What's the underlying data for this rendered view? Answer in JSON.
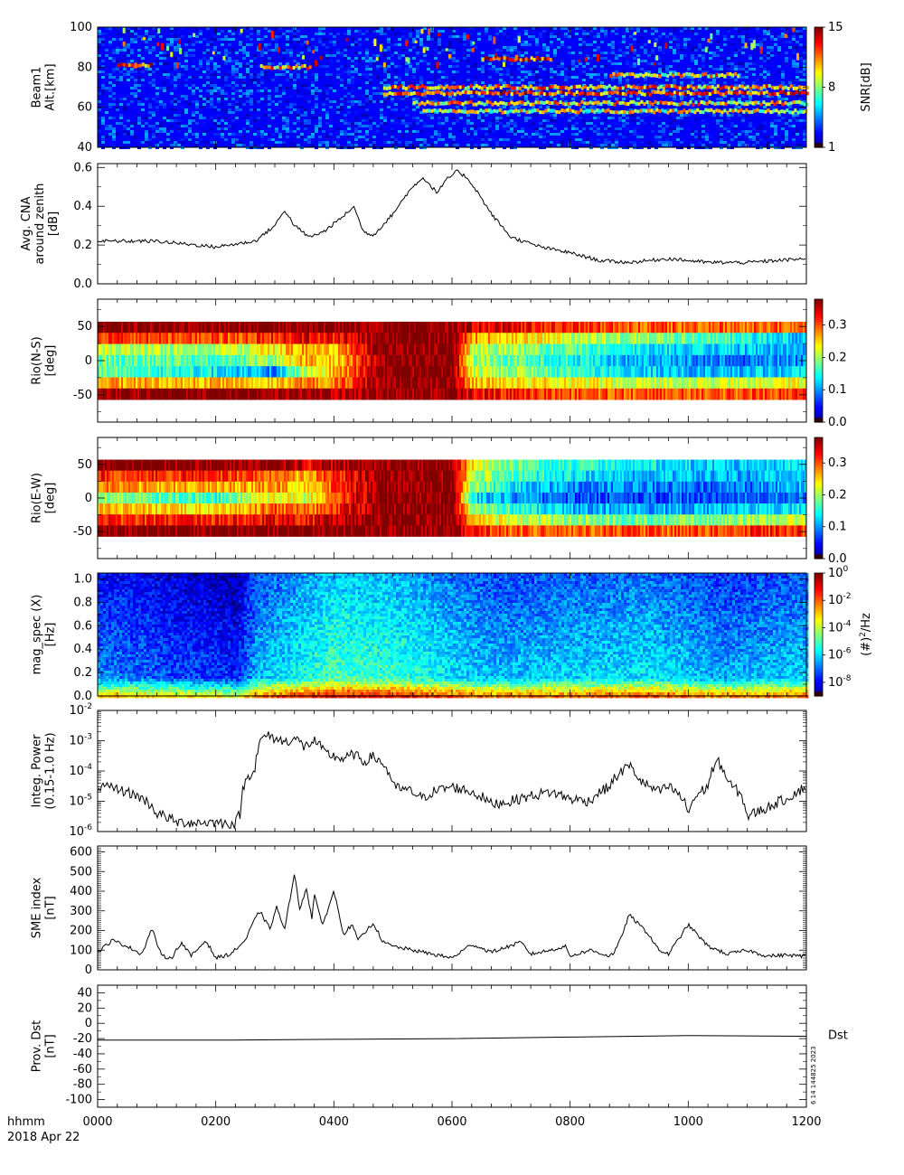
{
  "x_axis": {
    "labels": [
      "0000",
      "0200",
      "0400",
      "0600",
      "0800",
      "1000",
      "1200"
    ],
    "label_prefix": "hhmm",
    "date": "2018 Apr 22",
    "minutes": [
      0,
      120,
      240,
      360,
      480,
      600,
      720
    ]
  },
  "stamp": "6 14 144825 2023",
  "chart_data": [
    {
      "id": "beam1",
      "type": "heatmap",
      "ylabel": [
        "Beam1",
        "Alt.[km]"
      ],
      "ylim": [
        40,
        100
      ],
      "yticks": [
        40,
        60,
        80,
        100
      ],
      "colorbar": {
        "label": "SNR[dB]",
        "ticks": [
          "1",
          "8",
          "15"
        ],
        "range": [
          1,
          15
        ]
      },
      "layers": [
        {
          "altitude_km": 81,
          "start_min": 20,
          "end_min": 55,
          "snr_db": 12
        },
        {
          "altitude_km": 80,
          "start_min": 165,
          "end_min": 215,
          "snr_db": 11
        },
        {
          "altitude_km": 84,
          "start_min": 390,
          "end_min": 460,
          "snr_db": 13
        },
        {
          "altitude_km": 70,
          "start_min": 290,
          "end_min": 720,
          "snr_db": 11
        },
        {
          "altitude_km": 67,
          "start_min": 290,
          "end_min": 720,
          "snr_db": 12
        },
        {
          "altitude_km": 62,
          "start_min": 320,
          "end_min": 720,
          "snr_db": 10
        },
        {
          "altitude_km": 58,
          "start_min": 330,
          "end_min": 720,
          "snr_db": 9
        },
        {
          "altitude_km": 76,
          "start_min": 520,
          "end_min": 650,
          "snr_db": 10
        }
      ]
    },
    {
      "id": "cna",
      "type": "line",
      "ylabel": [
        "Avg. CNA",
        "around zenith",
        "[dB]"
      ],
      "ylim": [
        0.0,
        0.62
      ],
      "yticks": [
        "0.0",
        "0.2",
        "0.4",
        "0.6"
      ],
      "x": [
        0,
        60,
        120,
        160,
        180,
        190,
        200,
        215,
        230,
        250,
        260,
        270,
        280,
        300,
        315,
        330,
        345,
        355,
        365,
        375,
        385,
        400,
        420,
        450,
        480,
        510,
        540,
        580,
        620,
        660,
        690,
        720
      ],
      "values": [
        0.22,
        0.22,
        0.19,
        0.22,
        0.3,
        0.38,
        0.3,
        0.24,
        0.27,
        0.35,
        0.4,
        0.27,
        0.25,
        0.36,
        0.47,
        0.55,
        0.47,
        0.54,
        0.58,
        0.55,
        0.48,
        0.36,
        0.24,
        0.19,
        0.16,
        0.12,
        0.11,
        0.13,
        0.11,
        0.11,
        0.12,
        0.13
      ]
    },
    {
      "id": "rio_ns",
      "type": "heatmap",
      "ylabel": [
        "Rio(N-S)",
        "[deg]"
      ],
      "ylim": [
        -90,
        90
      ],
      "yticks": [
        "-50",
        "0",
        "50"
      ],
      "colorbar": {
        "ticks": [
          "0.0",
          "0.1",
          "0.2",
          "0.3"
        ],
        "range": [
          0,
          0.38
        ]
      },
      "beam_angles_deg": [
        50,
        30,
        15,
        0,
        -15,
        -30,
        -45
      ],
      "x": [
        0,
        120,
        180,
        210,
        240,
        290,
        340,
        360,
        380,
        420,
        480,
        540,
        600,
        660,
        720
      ],
      "values": [
        [
          0.38,
          0.38,
          0.38,
          0.38,
          0.38,
          0.38,
          0.38,
          0.38,
          0.35,
          0.34,
          0.32,
          0.3,
          0.3,
          0.3,
          0.3
        ],
        [
          0.32,
          0.3,
          0.32,
          0.34,
          0.33,
          0.38,
          0.38,
          0.38,
          0.28,
          0.25,
          0.22,
          0.2,
          0.18,
          0.15,
          0.12
        ],
        [
          0.22,
          0.2,
          0.24,
          0.28,
          0.26,
          0.38,
          0.38,
          0.38,
          0.22,
          0.2,
          0.17,
          0.15,
          0.13,
          0.12,
          0.12
        ],
        [
          0.18,
          0.17,
          0.2,
          0.27,
          0.25,
          0.38,
          0.38,
          0.38,
          0.2,
          0.18,
          0.15,
          0.12,
          0.1,
          0.09,
          0.1
        ],
        [
          0.18,
          0.14,
          0.1,
          0.22,
          0.26,
          0.38,
          0.38,
          0.38,
          0.22,
          0.2,
          0.16,
          0.14,
          0.12,
          0.12,
          0.13
        ],
        [
          0.28,
          0.26,
          0.25,
          0.28,
          0.28,
          0.38,
          0.38,
          0.38,
          0.26,
          0.25,
          0.24,
          0.22,
          0.22,
          0.22,
          0.24
        ],
        [
          0.38,
          0.38,
          0.38,
          0.37,
          0.36,
          0.38,
          0.38,
          0.38,
          0.34,
          0.32,
          0.3,
          0.3,
          0.3,
          0.3,
          0.32
        ]
      ]
    },
    {
      "id": "rio_ew",
      "type": "heatmap",
      "ylabel": [
        "Rio(E-W)",
        "[deg]"
      ],
      "ylim": [
        -90,
        90
      ],
      "yticks": [
        "-50",
        "0",
        "50"
      ],
      "colorbar": {
        "ticks": [
          "0.0",
          "0.1",
          "0.2",
          "0.3"
        ],
        "range": [
          0,
          0.38
        ]
      },
      "beam_angles_deg": [
        50,
        30,
        15,
        0,
        -15,
        -30,
        -45
      ],
      "x": [
        0,
        120,
        180,
        210,
        240,
        290,
        340,
        360,
        380,
        420,
        480,
        540,
        600,
        660,
        720
      ],
      "values": [
        [
          0.38,
          0.38,
          0.38,
          0.34,
          0.36,
          0.38,
          0.38,
          0.38,
          0.24,
          0.18,
          0.16,
          0.15,
          0.13,
          0.12,
          0.14
        ],
        [
          0.32,
          0.32,
          0.3,
          0.26,
          0.32,
          0.38,
          0.38,
          0.38,
          0.22,
          0.17,
          0.14,
          0.12,
          0.12,
          0.11,
          0.14
        ],
        [
          0.28,
          0.26,
          0.28,
          0.24,
          0.3,
          0.38,
          0.38,
          0.38,
          0.2,
          0.14,
          0.1,
          0.1,
          0.09,
          0.09,
          0.12
        ],
        [
          0.2,
          0.16,
          0.24,
          0.22,
          0.3,
          0.38,
          0.38,
          0.38,
          0.14,
          0.1,
          0.08,
          0.07,
          0.08,
          0.08,
          0.1
        ],
        [
          0.26,
          0.24,
          0.3,
          0.28,
          0.32,
          0.38,
          0.38,
          0.38,
          0.2,
          0.16,
          0.12,
          0.11,
          0.11,
          0.12,
          0.14
        ],
        [
          0.32,
          0.32,
          0.34,
          0.32,
          0.36,
          0.38,
          0.38,
          0.38,
          0.26,
          0.22,
          0.2,
          0.18,
          0.19,
          0.2,
          0.22
        ],
        [
          0.38,
          0.38,
          0.38,
          0.38,
          0.38,
          0.38,
          0.38,
          0.38,
          0.32,
          0.3,
          0.3,
          0.3,
          0.3,
          0.32,
          0.32
        ]
      ]
    },
    {
      "id": "mag_spec",
      "type": "heatmap",
      "ylabel": [
        "mag_spec (X)",
        "[Hz]"
      ],
      "ylim": [
        0.0,
        1.05
      ],
      "yticks": [
        "0.0",
        "0.2",
        "0.4",
        "0.6",
        "0.8",
        "1.0"
      ],
      "colorbar": {
        "label": "(#)^2/Hz",
        "ticks": [
          "10^0",
          "10^-2",
          "10^-4",
          "10^-6",
          "10^-8"
        ],
        "log_range": [
          -9,
          0
        ]
      },
      "log10_background_x": [
        0,
        120,
        140,
        160,
        240,
        300,
        360,
        400,
        480,
        560,
        640,
        720
      ],
      "log10_background": [
        -6.5,
        -7.2,
        -7.4,
        -6.0,
        -4.8,
        -5.0,
        -5.6,
        -6.0,
        -5.8,
        -5.6,
        -6.2,
        -5.8
      ]
    },
    {
      "id": "integ_power",
      "type": "line",
      "yscale": "log",
      "ylabel": [
        "Integ. Power",
        "(0.15-1.0 Hz)"
      ],
      "ylim": [
        1e-06,
        0.01
      ],
      "yticks": [
        "10^-6",
        "10^-5",
        "10^-4",
        "10^-3",
        "10^-2"
      ],
      "x": [
        0,
        20,
        40,
        60,
        80,
        100,
        120,
        140,
        145,
        160,
        170,
        180,
        190,
        200,
        210,
        220,
        230,
        240,
        250,
        260,
        270,
        280,
        300,
        320,
        330,
        340,
        360,
        380,
        400,
        420,
        440,
        460,
        480,
        500,
        520,
        530,
        540,
        550,
        560,
        570,
        580,
        600,
        620,
        630,
        640,
        660,
        680,
        700,
        710,
        720
      ],
      "values": [
        3e-05,
        2.5e-05,
        1.5e-05,
        4e-06,
        2e-06,
        2e-06,
        2e-06,
        1.8e-06,
        4e-06,
        0.00012,
        0.0015,
        0.0012,
        0.0009,
        0.0012,
        0.0006,
        0.001,
        0.0004,
        0.0003,
        0.00025,
        0.00035,
        0.0002,
        0.0003,
        3e-05,
        2e-05,
        1.2e-05,
        2e-05,
        3e-05,
        2e-05,
        8e-06,
        1e-05,
        1.5e-05,
        2e-05,
        1.2e-05,
        1e-05,
        3e-05,
        8e-05,
        0.00015,
        5e-05,
        3e-05,
        2e-05,
        3e-05,
        4e-06,
        3e-05,
        0.0002,
        4e-05,
        3e-06,
        6e-06,
        1.2e-05,
        2e-05,
        3e-05
      ]
    },
    {
      "id": "sme",
      "type": "line",
      "ylabel": [
        "SME index",
        "[nT]"
      ],
      "ylim": [
        0,
        630
      ],
      "yticks": [
        "0",
        "100",
        "200",
        "300",
        "400",
        "500",
        "600"
      ],
      "x": [
        0,
        15,
        30,
        45,
        55,
        65,
        75,
        85,
        95,
        110,
        120,
        135,
        150,
        160,
        165,
        170,
        175,
        182,
        190,
        200,
        205,
        212,
        218,
        220,
        228,
        240,
        250,
        258,
        265,
        280,
        290,
        300,
        320,
        340,
        360,
        380,
        400,
        430,
        440,
        460,
        475,
        480,
        500,
        520,
        525,
        530,
        540,
        560,
        570,
        580,
        600,
        620,
        640,
        660,
        680,
        700,
        715,
        720
      ],
      "values": [
        90,
        150,
        120,
        80,
        210,
        70,
        60,
        140,
        70,
        150,
        60,
        80,
        150,
        260,
        300,
        250,
        210,
        320,
        200,
        500,
        300,
        420,
        250,
        400,
        220,
        400,
        180,
        230,
        150,
        240,
        140,
        120,
        100,
        80,
        60,
        130,
        90,
        140,
        80,
        100,
        120,
        70,
        100,
        70,
        90,
        140,
        280,
        180,
        100,
        80,
        230,
        120,
        80,
        100,
        70,
        75,
        70,
        70
      ]
    },
    {
      "id": "dst",
      "type": "line",
      "ylabel": [
        "Prov. Dst",
        "[nT]"
      ],
      "ylim": [
        -110,
        50
      ],
      "yticks": [
        "40",
        "20",
        "0",
        "-20",
        "-40",
        "-60",
        "-80",
        "-100"
      ],
      "legend": "Dst",
      "x": [
        0,
        120,
        240,
        360,
        480,
        600,
        720
      ],
      "values": [
        -22,
        -22,
        -21,
        -20,
        -18,
        -16,
        -17
      ]
    }
  ]
}
